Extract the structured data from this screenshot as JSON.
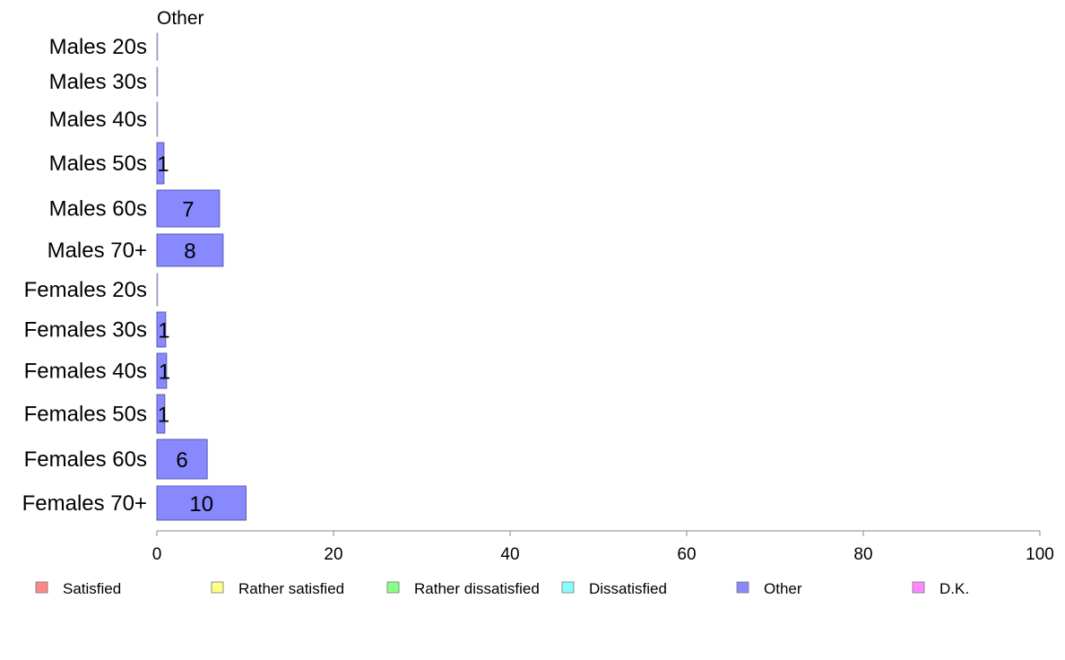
{
  "chart_data": {
    "type": "bar",
    "orientation": "horizontal",
    "title": "Other",
    "categories": [
      "Males 20s",
      "Males 30s",
      "Males 40s",
      "Males 50s",
      "Males 60s",
      "Males 70+",
      "Females 20s",
      "Females 30s",
      "Females 40s",
      "Females 50s",
      "Females 60s",
      "Females 70+"
    ],
    "series": [
      {
        "name": "Other",
        "color": "#8888ff",
        "values": [
          0,
          0,
          0,
          0.8,
          7.1,
          7.5,
          0,
          1.0,
          1.1,
          0.9,
          5.7,
          10.1
        ],
        "labels": [
          "",
          "",
          "",
          "1",
          "7",
          "8",
          "",
          "1",
          "1",
          "1",
          "6",
          "10"
        ]
      }
    ],
    "xlim": [
      0,
      100
    ],
    "xticks": [
      "0",
      "20",
      "40",
      "60",
      "80",
      "100"
    ],
    "grid": false,
    "legend": {
      "placement": "bottom",
      "entries": [
        {
          "name": "Satisfied",
          "color": "#ff8888"
        },
        {
          "name": "Rather satisfied",
          "color": "#ffff88"
        },
        {
          "name": "Rather dissatisfied",
          "color": "#88ff88"
        },
        {
          "name": "Dissatisfied",
          "color": "#88ffff"
        },
        {
          "name": "Other",
          "color": "#8888ff"
        },
        {
          "name": "D.K.",
          "color": "#ff88ff"
        }
      ]
    }
  }
}
